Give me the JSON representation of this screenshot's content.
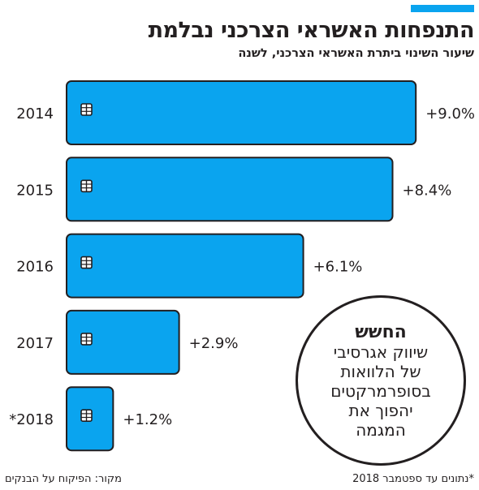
{
  "header": {
    "title": "התנפחות האשראי הצרכני נבלמת",
    "subtitle": "שיעור השינוי ביתרת האשראי הצרכני, לשנה"
  },
  "colors": {
    "bar": "#0aa4ef",
    "accent": "#0aa4ef",
    "text": "#231f20"
  },
  "chart_data": {
    "type": "bar",
    "orientation": "horizontal",
    "title": "התנפחות האשראי הצרכני נבלמת",
    "subtitle": "שיעור השינוי ביתרת האשראי הצרכני, לשנה",
    "categories": [
      "2014",
      "2015",
      "2016",
      "2017",
      "*2018"
    ],
    "values": [
      9.0,
      8.4,
      6.1,
      2.9,
      1.2
    ],
    "value_labels": [
      "+9.0%",
      "+8.4%",
      "+6.1%",
      "+2.9%",
      "+1.2%"
    ],
    "bar_icon": "credit-card-chip-icon",
    "grid": false,
    "legend": "none"
  },
  "callout": {
    "heading": "החשש",
    "lines": [
      "שיווק אגרסיבי",
      "של הלוואות",
      "בסופרמרקטים",
      "יהפוך את",
      "המגמה"
    ]
  },
  "footer": {
    "note": "*נתונים עד ספטמבר 2018",
    "source": "מקור: הפיקוח על הבנקים"
  }
}
